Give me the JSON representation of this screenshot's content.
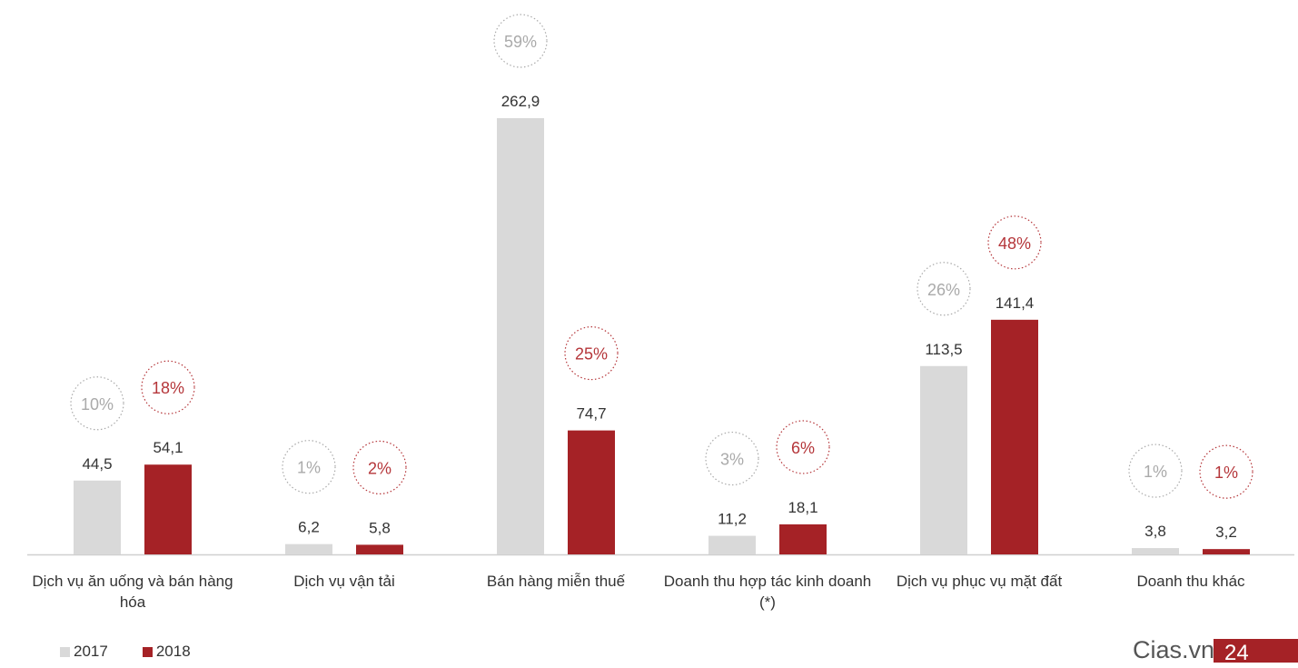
{
  "chart_data": {
    "type": "bar",
    "categories": [
      "Dịch vụ ăn uống và bán hàng hóa",
      "Dịch vụ vận tải",
      "Bán hàng miễn thuế",
      "Doanh thu hợp tác kinh doanh (*)",
      "Dịch vụ phục vụ mặt đất",
      "Doanh thu khác"
    ],
    "series": [
      {
        "name": "2017",
        "color": "#d9d9d9",
        "pct_color": "#aaaaaa",
        "values": [
          44.5,
          6.2,
          262.9,
          11.2,
          113.5,
          3.8
        ],
        "labels": [
          "44,5",
          "6,2",
          "262,9",
          "11,2",
          "113,5",
          "3,8"
        ],
        "shares": [
          "10%",
          "1%",
          "59%",
          "3%",
          "26%",
          "1%"
        ]
      },
      {
        "name": "2018",
        "color": "#a52226",
        "pct_color": "#b5363a",
        "values": [
          54.1,
          5.8,
          74.7,
          18.1,
          141.4,
          3.2
        ],
        "labels": [
          "54,1",
          "5,8",
          "74,7",
          "18,1",
          "141,4",
          "3,2"
        ],
        "shares": [
          "18%",
          "2%",
          "25%",
          "6%",
          "48%",
          "1%"
        ]
      }
    ],
    "ylim": [
      0,
      262.9
    ],
    "grid": false,
    "legend": "bottom-left"
  },
  "footer": {
    "brand": "Cias.vn",
    "page_number": "24"
  }
}
